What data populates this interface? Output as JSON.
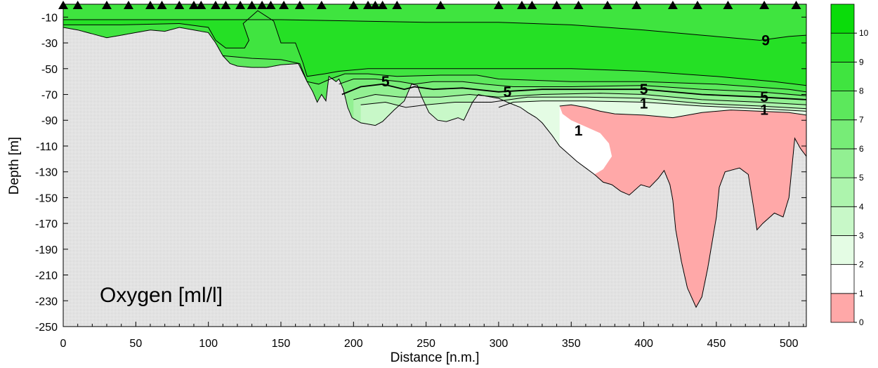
{
  "chart_data": {
    "type": "contour",
    "title": "Oxygen [ml/l]",
    "xlabel": "Distance [n.m.]",
    "ylabel": "Depth [m]",
    "xlim": [
      0,
      512
    ],
    "ylim": [
      -250,
      0
    ],
    "x_ticks": [
      0,
      50,
      100,
      150,
      200,
      250,
      300,
      350,
      400,
      450,
      500
    ],
    "y_ticks": [
      -10,
      -30,
      -50,
      -70,
      -90,
      -110,
      -130,
      -150,
      -170,
      -190,
      -210,
      -230,
      -250
    ],
    "station_positions": [
      0,
      10,
      30,
      45,
      60,
      68,
      80,
      90,
      95,
      105,
      112,
      122,
      130,
      137,
      143,
      152,
      163,
      178,
      200,
      210,
      215,
      220,
      230,
      260,
      300,
      316,
      323,
      340,
      355,
      375,
      395,
      420,
      437,
      458,
      483,
      505
    ],
    "colorbar": {
      "levels": [
        0,
        1,
        2,
        3,
        4,
        5,
        6,
        7,
        8,
        9,
        10
      ],
      "labels": [
        "0",
        "1",
        "2",
        "3",
        "4",
        "5",
        "6",
        "7",
        "8",
        "9",
        "10"
      ],
      "colors": [
        "#FFA8A8",
        "#FFFFFF",
        "#E4FCE4",
        "#C8F8C8",
        "#ADF4AD",
        "#92F092",
        "#77EC77",
        "#5CE85C",
        "#40E440",
        "#25E025",
        "#0ADC0A"
      ]
    },
    "contour_labels": [
      {
        "text": "9",
        "x": 484,
        "y": -28
      },
      {
        "text": "5",
        "x": 222,
        "y": -60
      },
      {
        "text": "5",
        "x": 306,
        "y": -68
      },
      {
        "text": "5",
        "x": 400,
        "y": -66
      },
      {
        "text": "5",
        "x": 483,
        "y": -72
      },
      {
        "text": "1",
        "x": 400,
        "y": -77
      },
      {
        "text": "1",
        "x": 483,
        "y": -82
      },
      {
        "text": "1",
        "x": 355,
        "y": -98
      }
    ],
    "bottom_profile": [
      [
        0,
        -18
      ],
      [
        10,
        -20
      ],
      [
        20,
        -23
      ],
      [
        30,
        -26
      ],
      [
        40,
        -24
      ],
      [
        50,
        -22
      ],
      [
        60,
        -20
      ],
      [
        70,
        -21
      ],
      [
        80,
        -18
      ],
      [
        90,
        -20
      ],
      [
        100,
        -22
      ],
      [
        105,
        -30
      ],
      [
        110,
        -40
      ],
      [
        115,
        -46
      ],
      [
        120,
        -48
      ],
      [
        130,
        -49
      ],
      [
        140,
        -49
      ],
      [
        150,
        -47
      ],
      [
        162,
        -46
      ],
      [
        168,
        -60
      ],
      [
        172,
        -68
      ],
      [
        175,
        -76
      ],
      [
        178,
        -70
      ],
      [
        181,
        -75
      ],
      [
        183,
        -56
      ],
      [
        188,
        -60
      ],
      [
        190,
        -58
      ],
      [
        193,
        -66
      ],
      [
        196,
        -80
      ],
      [
        199,
        -88
      ],
      [
        205,
        -92
      ],
      [
        215,
        -94
      ],
      [
        220,
        -91
      ],
      [
        228,
        -82
      ],
      [
        235,
        -75
      ],
      [
        240,
        -62
      ],
      [
        244,
        -63
      ],
      [
        247,
        -72
      ],
      [
        252,
        -84
      ],
      [
        258,
        -90
      ],
      [
        264,
        -91
      ],
      [
        272,
        -88
      ],
      [
        276,
        -90
      ],
      [
        282,
        -76
      ],
      [
        286,
        -70
      ],
      [
        290,
        -71
      ],
      [
        295,
        -72
      ],
      [
        300,
        -73
      ],
      [
        306,
        -76
      ],
      [
        315,
        -80
      ],
      [
        320,
        -84
      ],
      [
        326,
        -88
      ],
      [
        330,
        -92
      ],
      [
        337,
        -102
      ],
      [
        342,
        -110
      ],
      [
        348,
        -116
      ],
      [
        354,
        -122
      ],
      [
        360,
        -127
      ],
      [
        366,
        -132
      ],
      [
        372,
        -138
      ],
      [
        378,
        -140
      ],
      [
        384,
        -145
      ],
      [
        390,
        -148
      ],
      [
        398,
        -140
      ],
      [
        404,
        -142
      ],
      [
        410,
        -135
      ],
      [
        414,
        -129
      ],
      [
        418,
        -140
      ],
      [
        420,
        -152
      ],
      [
        422,
        -175
      ],
      [
        426,
        -200
      ],
      [
        430,
        -220
      ],
      [
        436,
        -235
      ],
      [
        440,
        -227
      ],
      [
        444,
        -205
      ],
      [
        450,
        -165
      ],
      [
        452,
        -142
      ],
      [
        456,
        -130
      ],
      [
        466,
        -127
      ],
      [
        472,
        -132
      ],
      [
        476,
        -160
      ],
      [
        478,
        -175
      ],
      [
        482,
        -170
      ],
      [
        490,
        -162
      ],
      [
        496,
        -165
      ],
      [
        500,
        -150
      ],
      [
        504,
        -104
      ],
      [
        508,
        -112
      ],
      [
        512,
        -118
      ]
    ],
    "anoxic_zone": [
      [
        342,
        -79
      ],
      [
        350,
        -78
      ],
      [
        360,
        -80
      ],
      [
        370,
        -83
      ],
      [
        380,
        -85
      ],
      [
        400,
        -86
      ],
      [
        420,
        -88
      ],
      [
        440,
        -84
      ],
      [
        460,
        -82
      ],
      [
        480,
        -83
      ],
      [
        500,
        -84
      ],
      [
        512,
        -86
      ],
      [
        512,
        -118
      ],
      [
        508,
        -112
      ],
      [
        504,
        -104
      ],
      [
        500,
        -150
      ],
      [
        496,
        -165
      ],
      [
        490,
        -162
      ],
      [
        482,
        -170
      ],
      [
        478,
        -175
      ],
      [
        476,
        -160
      ],
      [
        472,
        -132
      ],
      [
        466,
        -127
      ],
      [
        456,
        -130
      ],
      [
        452,
        -142
      ],
      [
        450,
        -165
      ],
      [
        444,
        -205
      ],
      [
        440,
        -227
      ],
      [
        436,
        -235
      ],
      [
        430,
        -220
      ],
      [
        426,
        -200
      ],
      [
        422,
        -175
      ],
      [
        420,
        -152
      ],
      [
        418,
        -140
      ],
      [
        414,
        -129
      ],
      [
        410,
        -135
      ],
      [
        404,
        -142
      ],
      [
        398,
        -140
      ],
      [
        390,
        -148
      ],
      [
        384,
        -145
      ],
      [
        378,
        -140
      ],
      [
        372,
        -138
      ],
      [
        366,
        -132
      ],
      [
        372,
        -128
      ],
      [
        378,
        -118
      ],
      [
        376,
        -108
      ],
      [
        370,
        -100
      ],
      [
        360,
        -95
      ],
      [
        350,
        -90
      ],
      [
        344,
        -85
      ]
    ],
    "iso_9": [
      [
        0,
        -12
      ],
      [
        50,
        -12
      ],
      [
        100,
        -12
      ],
      [
        150,
        -12
      ],
      [
        200,
        -13
      ],
      [
        250,
        -14
      ],
      [
        300,
        -14
      ],
      [
        350,
        -16
      ],
      [
        400,
        -20
      ],
      [
        440,
        -24
      ],
      [
        480,
        -28
      ],
      [
        500,
        -25
      ],
      [
        512,
        -24
      ]
    ],
    "iso_8": [
      [
        0,
        -16
      ],
      [
        40,
        -16
      ],
      [
        80,
        -15
      ],
      [
        100,
        -18
      ],
      [
        105,
        -28
      ],
      [
        112,
        -34
      ],
      [
        125,
        -34
      ],
      [
        128,
        -28
      ],
      [
        124,
        -15
      ],
      [
        134,
        -5
      ],
      [
        145,
        -13
      ],
      [
        150,
        -30
      ],
      [
        160,
        -30
      ],
      [
        165,
        -45
      ],
      [
        168,
        -56
      ],
      [
        180,
        -54
      ],
      [
        190,
        -52
      ],
      [
        210,
        -50
      ],
      [
        250,
        -50
      ],
      [
        300,
        -50
      ],
      [
        350,
        -50
      ],
      [
        400,
        -52
      ],
      [
        450,
        -56
      ],
      [
        490,
        -60
      ],
      [
        512,
        -63
      ]
    ],
    "iso_7": [
      [
        110,
        -40
      ],
      [
        130,
        -42
      ],
      [
        150,
        -43
      ],
      [
        163,
        -46
      ],
      [
        168,
        -60
      ],
      [
        176,
        -62
      ],
      [
        184,
        -58
      ],
      [
        194,
        -54
      ],
      [
        210,
        -54
      ],
      [
        230,
        -56
      ],
      [
        260,
        -55
      ],
      [
        285,
        -55
      ],
      [
        300,
        -58
      ],
      [
        350,
        -60
      ],
      [
        400,
        -60
      ],
      [
        450,
        -62
      ],
      [
        500,
        -66
      ],
      [
        512,
        -68
      ]
    ],
    "iso_6": [
      [
        190,
        -62
      ],
      [
        200,
        -58
      ],
      [
        215,
        -58
      ],
      [
        232,
        -60
      ],
      [
        242,
        -62
      ],
      [
        255,
        -60
      ],
      [
        275,
        -60
      ],
      [
        290,
        -62
      ],
      [
        310,
        -64
      ],
      [
        350,
        -64
      ],
      [
        400,
        -63
      ],
      [
        440,
        -66
      ],
      [
        480,
        -68
      ],
      [
        512,
        -71
      ]
    ],
    "iso_5": [
      [
        192,
        -70
      ],
      [
        205,
        -64
      ],
      [
        220,
        -62
      ],
      [
        235,
        -66
      ],
      [
        242,
        -64
      ],
      [
        255,
        -66
      ],
      [
        275,
        -65
      ],
      [
        300,
        -68
      ],
      [
        330,
        -66
      ],
      [
        370,
        -66
      ],
      [
        400,
        -66
      ],
      [
        440,
        -70
      ],
      [
        480,
        -72
      ],
      [
        512,
        -74
      ]
    ],
    "iso_4": [
      [
        200,
        -74
      ],
      [
        215,
        -70
      ],
      [
        232,
        -72
      ],
      [
        245,
        -72
      ],
      [
        260,
        -72
      ],
      [
        280,
        -70
      ],
      [
        300,
        -72
      ],
      [
        330,
        -70
      ],
      [
        370,
        -69
      ],
      [
        400,
        -70
      ],
      [
        440,
        -74
      ],
      [
        480,
        -76
      ],
      [
        512,
        -78
      ]
    ],
    "iso_3": [
      [
        205,
        -78
      ],
      [
        222,
        -76
      ],
      [
        236,
        -80
      ],
      [
        250,
        -78
      ],
      [
        270,
        -76
      ],
      [
        295,
        -76
      ],
      [
        320,
        -72
      ],
      [
        360,
        -72
      ],
      [
        400,
        -73
      ],
      [
        440,
        -77
      ],
      [
        480,
        -79
      ],
      [
        512,
        -81
      ]
    ],
    "iso_2": [
      [
        300,
        -80
      ],
      [
        310,
        -76
      ],
      [
        330,
        -75
      ],
      [
        360,
        -75
      ],
      [
        400,
        -76
      ],
      [
        440,
        -79
      ],
      [
        480,
        -81
      ],
      [
        512,
        -83
      ]
    ],
    "iso_1": [
      [
        342,
        -79
      ],
      [
        350,
        -78
      ],
      [
        360,
        -80
      ],
      [
        370,
        -83
      ],
      [
        380,
        -85
      ],
      [
        400,
        -86
      ],
      [
        420,
        -88
      ],
      [
        440,
        -84
      ],
      [
        460,
        -82
      ],
      [
        480,
        -83
      ],
      [
        500,
        -84
      ],
      [
        512,
        -86
      ]
    ]
  }
}
